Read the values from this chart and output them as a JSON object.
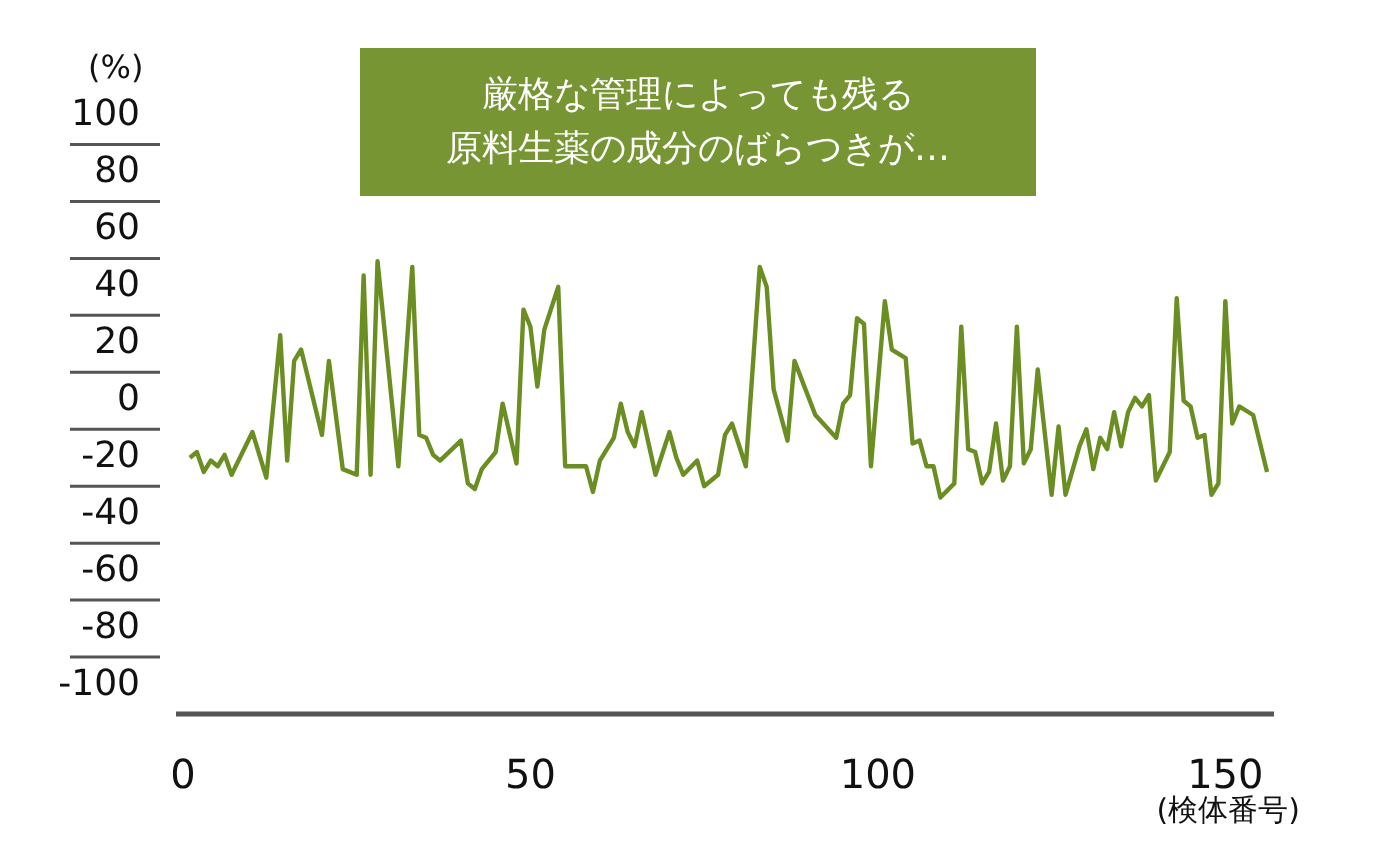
{
  "chart_data": {
    "type": "line",
    "title": "厳格な管理によっても残る",
    "subtitle": "原料生薬の成分のばらつきが…",
    "ylabel": "(%)",
    "xlabel": "(検体番号)",
    "series": [
      {
        "color": "#6b8e23",
        "x": [
          1,
          2,
          3,
          4,
          5,
          6,
          7,
          10,
          12,
          14,
          15,
          16,
          17,
          20,
          21,
          23,
          25,
          26,
          27,
          28,
          31,
          33,
          34,
          35,
          36,
          37,
          40,
          41,
          42,
          43,
          44,
          45,
          46,
          48,
          49,
          50,
          51,
          52,
          54,
          55,
          58,
          59,
          60,
          62,
          63,
          64,
          65,
          66,
          68,
          70,
          71,
          72,
          74,
          75,
          77,
          78,
          79,
          81,
          83,
          84,
          85,
          87,
          88,
          91,
          94,
          95,
          96,
          97,
          98,
          99,
          101,
          102,
          104,
          105,
          106,
          107,
          108,
          109,
          111,
          112,
          113,
          114,
          115,
          116,
          117,
          118,
          119,
          120,
          121,
          122,
          123,
          125,
          126,
          127,
          129,
          130,
          131,
          132,
          133,
          134,
          135,
          136,
          137,
          138,
          139,
          140,
          142,
          143,
          144,
          145,
          146,
          147,
          148,
          149,
          150,
          151,
          152,
          154,
          156
        ],
        "values": [
          -20,
          -18,
          -25,
          -21,
          -23,
          -19,
          -26,
          -11,
          -27,
          23,
          -21,
          14,
          18,
          -12,
          14,
          -24,
          -26,
          44,
          -26,
          49,
          -23,
          47,
          -12,
          -13,
          -19,
          -21,
          -14,
          -29,
          -31,
          -24,
          -21,
          -18,
          -1,
          -22,
          32,
          26,
          5,
          25,
          40,
          -23,
          -23,
          -32,
          -21,
          -13,
          -1,
          -11,
          -16,
          -4,
          -26,
          -11,
          -20,
          -26,
          -21,
          -30,
          -26,
          -12,
          -8,
          -23,
          47,
          40,
          4,
          -14,
          14,
          -5,
          -13,
          -1,
          2,
          29,
          27,
          -23,
          35,
          18,
          15,
          -15,
          -14,
          -23,
          -23,
          -34,
          -29,
          26,
          -17,
          -18,
          -29,
          -25,
          -8,
          -28,
          -23,
          26,
          -22,
          -17,
          11,
          -33,
          -9,
          -33,
          -16,
          -10,
          -24,
          -13,
          -17,
          -4,
          -16,
          -4,
          1,
          -2,
          2,
          -28,
          -18,
          36,
          0,
          -2,
          -13,
          -12,
          -33,
          -29,
          35,
          -8,
          -2,
          -5,
          -25
        ]
      }
    ],
    "xlim": [
      -1,
      157
    ],
    "xticks": [
      0,
      50,
      100,
      150
    ],
    "ylim": [
      -110,
      100
    ],
    "yticks": [
      100,
      80,
      60,
      40,
      20,
      0,
      -20,
      -40,
      -60,
      -80,
      -100
    ]
  }
}
